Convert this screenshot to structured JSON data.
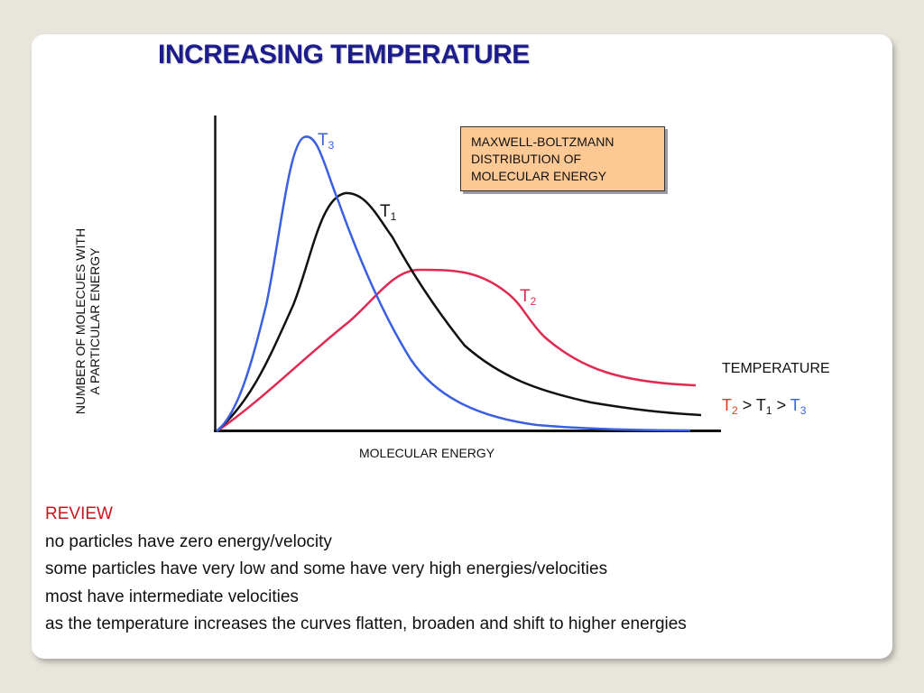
{
  "title": "INCREASING TEMPERATURE",
  "diagram": {
    "y_axis_label": [
      "NUMBER OF MOLECUES WITH",
      "A PARTICULAR ENERGY"
    ],
    "x_axis_label": "MOLECULAR ENERGY",
    "box_label": [
      "MAXWELL-BOLTZMANN",
      "DISTRIBUTION OF",
      "MOLECULAR ENERGY"
    ],
    "curves": [
      {
        "letter": "T",
        "subscript": "3",
        "color": "#3a5fe0"
      },
      {
        "letter": "T",
        "subscript": "1",
        "color": "#111111"
      },
      {
        "letter": "T",
        "subscript": "2",
        "color": "#e02a52"
      }
    ],
    "temperature_heading": "TEMPERATURE",
    "temperature_order": [
      {
        "letter": "T",
        "subscript": "2",
        "color": "#e03a1a"
      },
      {
        "text": " > "
      },
      {
        "letter": "T",
        "subscript": "1",
        "color": "#111111"
      },
      {
        "text": " > "
      },
      {
        "letter": "T",
        "subscript": "3",
        "color": "#3a5fe0"
      }
    ]
  },
  "review": {
    "heading": "REVIEW",
    "heading_color": "#c8161d",
    "lines": [
      "no particles have zero energy/velocity",
      "some particles have very low and some have very high energies/velocities",
      "most have intermediate velocities",
      "as the temperature increases the curves flatten, broaden and shift to higher energies"
    ]
  }
}
